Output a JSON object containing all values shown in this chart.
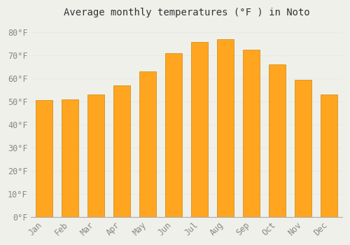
{
  "title": "Average monthly temperatures (°F ) in Noto",
  "months": [
    "Jan",
    "Feb",
    "Mar",
    "Apr",
    "May",
    "Jun",
    "Jul",
    "Aug",
    "Sep",
    "Oct",
    "Nov",
    "Dec"
  ],
  "values": [
    50.5,
    51,
    53,
    57,
    63,
    71,
    76,
    77,
    72.5,
    66,
    59.5,
    53
  ],
  "bar_color": "#FFA520",
  "bar_edge_color": "#CC8800",
  "background_color": "#f0f0eb",
  "grid_color": "#e8e8e8",
  "yticks": [
    0,
    10,
    20,
    30,
    40,
    50,
    60,
    70,
    80
  ],
  "ylim": [
    0,
    84
  ],
  "title_fontsize": 10,
  "tick_fontsize": 8.5,
  "tick_color": "#888888"
}
